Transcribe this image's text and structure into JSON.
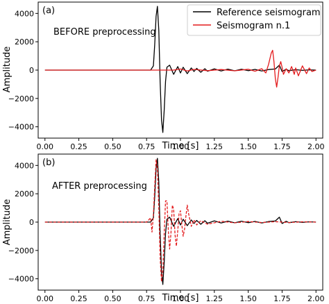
{
  "colors": {
    "reference": "#000000",
    "seismogram": "#e31a1c",
    "axes": "#000000",
    "background": "#ffffff"
  },
  "chart_data": [
    {
      "type": "line",
      "panel_label": "(a)",
      "annotation": "BEFORE preprocessing",
      "xlabel": "Time [s]",
      "ylabel": "Amplitude",
      "xlim": [
        -0.05,
        2.05
      ],
      "ylim": [
        -4800,
        4800
      ],
      "xticks": [
        0.0,
        0.25,
        0.5,
        0.75,
        1.0,
        1.25,
        1.5,
        1.75,
        2.0
      ],
      "xtick_labels": [
        "0.00",
        "0.25",
        "0.50",
        "0.75",
        "1.00",
        "1.25",
        "1.50",
        "1.75",
        "2.00"
      ],
      "yticks": [
        -4000,
        -2000,
        0,
        2000,
        4000
      ],
      "ytick_labels": [
        "−4000",
        "−2000",
        "0",
        "2000",
        "4000"
      ],
      "grid": false,
      "legend": "top-right",
      "series": [
        {
          "name": "Reference seismogram",
          "style": "solid",
          "color": "#000000",
          "x": [
            0.0,
            0.78,
            0.8,
            0.81,
            0.82,
            0.83,
            0.84,
            0.85,
            0.86,
            0.87,
            0.88,
            0.89,
            0.9,
            0.92,
            0.95,
            0.98,
            1.0,
            1.02,
            1.05,
            1.08,
            1.1,
            1.12,
            1.15,
            1.18,
            1.2,
            1.25,
            1.3,
            1.35,
            1.4,
            1.45,
            1.5,
            1.55,
            1.6,
            1.65,
            1.7,
            1.73,
            1.75,
            1.78,
            1.8,
            1.85,
            1.9,
            1.95,
            2.0
          ],
          "y": [
            0,
            0,
            300,
            1800,
            3800,
            4500,
            2800,
            -800,
            -3500,
            -4400,
            -2800,
            -800,
            200,
            350,
            -300,
            250,
            -200,
            200,
            -250,
            150,
            -100,
            120,
            -150,
            100,
            -80,
            90,
            -60,
            70,
            -50,
            60,
            -40,
            50,
            -60,
            40,
            80,
            350,
            -100,
            60,
            -40,
            30,
            -20,
            20,
            0
          ]
        },
        {
          "name": "Seismogram n.1",
          "style": "solid",
          "color": "#e31a1c",
          "x": [
            0.0,
            0.95,
            1.0,
            1.05,
            1.1,
            1.2,
            1.3,
            1.4,
            1.5,
            1.55,
            1.6,
            1.63,
            1.65,
            1.67,
            1.68,
            1.69,
            1.7,
            1.71,
            1.72,
            1.73,
            1.74,
            1.75,
            1.76,
            1.78,
            1.8,
            1.82,
            1.84,
            1.85,
            1.87,
            1.9,
            1.93,
            1.95,
            1.97,
            2.0
          ],
          "y": [
            0,
            0,
            80,
            -60,
            50,
            -40,
            40,
            -50,
            60,
            -80,
            100,
            -200,
            400,
            1200,
            1400,
            600,
            -600,
            -1200,
            -500,
            300,
            600,
            200,
            -300,
            100,
            -200,
            250,
            -300,
            150,
            -400,
            300,
            -250,
            150,
            -100,
            0
          ]
        }
      ]
    },
    {
      "type": "line",
      "panel_label": "(b)",
      "annotation": "AFTER preprocessing",
      "xlabel": "Time [s]",
      "ylabel": "Amplitude",
      "xlim": [
        -0.05,
        2.05
      ],
      "ylim": [
        -4800,
        4800
      ],
      "xticks": [
        0.0,
        0.25,
        0.5,
        0.75,
        1.0,
        1.25,
        1.5,
        1.75,
        2.0
      ],
      "xtick_labels": [
        "0.00",
        "0.25",
        "0.50",
        "0.75",
        "1.00",
        "1.25",
        "1.50",
        "1.75",
        "2.00"
      ],
      "yticks": [
        -4000,
        -2000,
        0,
        2000,
        4000
      ],
      "ytick_labels": [
        "−4000",
        "−2000",
        "0",
        "2000",
        "4000"
      ],
      "grid": false,
      "legend": "none",
      "series": [
        {
          "name": "Reference seismogram",
          "style": "solid",
          "color": "#000000",
          "x": [
            0.0,
            0.78,
            0.8,
            0.81,
            0.82,
            0.83,
            0.84,
            0.85,
            0.86,
            0.87,
            0.88,
            0.89,
            0.9,
            0.92,
            0.95,
            0.98,
            1.0,
            1.02,
            1.05,
            1.08,
            1.1,
            1.12,
            1.15,
            1.18,
            1.2,
            1.25,
            1.3,
            1.35,
            1.4,
            1.45,
            1.5,
            1.55,
            1.6,
            1.65,
            1.7,
            1.73,
            1.75,
            1.78,
            1.8,
            1.85,
            1.9,
            1.95,
            2.0
          ],
          "y": [
            0,
            0,
            300,
            1800,
            3800,
            4500,
            2800,
            -800,
            -3500,
            -4400,
            -2800,
            -800,
            200,
            350,
            -300,
            250,
            -200,
            200,
            -250,
            150,
            -100,
            120,
            -150,
            100,
            -80,
            90,
            -60,
            70,
            -50,
            60,
            -40,
            50,
            -60,
            40,
            80,
            350,
            -100,
            60,
            -40,
            30,
            -20,
            20,
            0
          ]
        },
        {
          "name": "Seismogram n.1",
          "style": "dashed",
          "color": "#e31a1c",
          "x": [
            0.0,
            0.75,
            0.78,
            0.79,
            0.8,
            0.81,
            0.82,
            0.83,
            0.84,
            0.85,
            0.86,
            0.87,
            0.88,
            0.89,
            0.9,
            0.91,
            0.92,
            0.93,
            0.94,
            0.95,
            0.96,
            0.97,
            0.98,
            0.99,
            1.0,
            1.01,
            1.02,
            1.03,
            1.04,
            1.05,
            1.06,
            1.08,
            1.1,
            1.12,
            1.15,
            1.2,
            1.3,
            1.4,
            1.5,
            1.6,
            1.7,
            1.8,
            1.9,
            2.0
          ],
          "y": [
            0,
            0,
            300,
            -700,
            500,
            2500,
            4400,
            3800,
            1000,
            -2500,
            -4200,
            -3400,
            -800,
            1500,
            1500,
            -500,
            -1900,
            -800,
            1200,
            900,
            -900,
            -1700,
            -600,
            600,
            800,
            -200,
            -1000,
            -500,
            400,
            1200,
            600,
            -300,
            150,
            -200,
            100,
            -150,
            60,
            -50,
            40,
            -30,
            30,
            -30,
            20,
            0
          ]
        }
      ]
    }
  ]
}
